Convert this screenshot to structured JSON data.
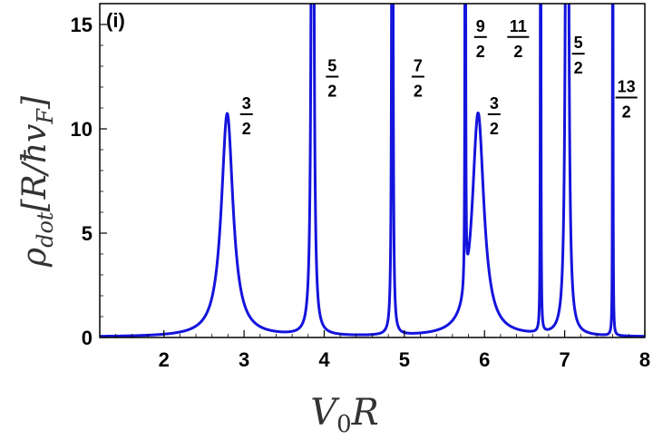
{
  "chart_data": {
    "type": "line",
    "panel_label": "(i)",
    "xlabel_main": "V",
    "xlabel_sub": "0",
    "xlabel_tail": "R",
    "ylabel_main": "ρ",
    "ylabel_sub": "dot",
    "ylabel_tail": "[R/ħv",
    "ylabel_sub2": "F",
    "ylabel_close": "]",
    "xlim": [
      1.2,
      8.0
    ],
    "ylim": [
      0,
      16
    ],
    "x_ticks": [
      2,
      3,
      4,
      5,
      6,
      7,
      8
    ],
    "y_ticks": [
      0,
      5,
      10,
      15
    ],
    "line_color": "#1414dc",
    "series": [
      {
        "resonances": [
          {
            "x0": 2.79,
            "gamma": 0.088,
            "peak": 10.7
          },
          {
            "x0": 3.855,
            "gamma": 0.012,
            "peak": 60
          },
          {
            "x0": 4.85,
            "gamma": 0.006,
            "peak": 60
          },
          {
            "x0": 5.76,
            "gamma": 0.003,
            "peak": 60
          },
          {
            "x0": 5.92,
            "gamma": 0.088,
            "peak": 10.7
          },
          {
            "x0": 6.7,
            "gamma": 0.0025,
            "peak": 60
          },
          {
            "x0": 7.03,
            "gamma": 0.014,
            "peak": 60
          },
          {
            "x0": 7.6,
            "gamma": 0.002,
            "peak": 60
          }
        ]
      }
    ],
    "annotations": [
      {
        "num": "3",
        "den": "2",
        "x": 3.03,
        "y": 10.7
      },
      {
        "num": "5",
        "den": "2",
        "x": 4.1,
        "y": 12.5
      },
      {
        "num": "7",
        "den": "2",
        "x": 5.17,
        "y": 12.5
      },
      {
        "num": "9",
        "den": "2",
        "x": 5.95,
        "y": 14.4
      },
      {
        "num": "3",
        "den": "2",
        "x": 6.12,
        "y": 10.7
      },
      {
        "num": "11",
        "den": "2",
        "x": 6.42,
        "y": 14.4
      },
      {
        "num": "5",
        "den": "2",
        "x": 7.17,
        "y": 13.6
      },
      {
        "num": "13",
        "den": "2",
        "x": 7.77,
        "y": 11.5
      }
    ]
  }
}
